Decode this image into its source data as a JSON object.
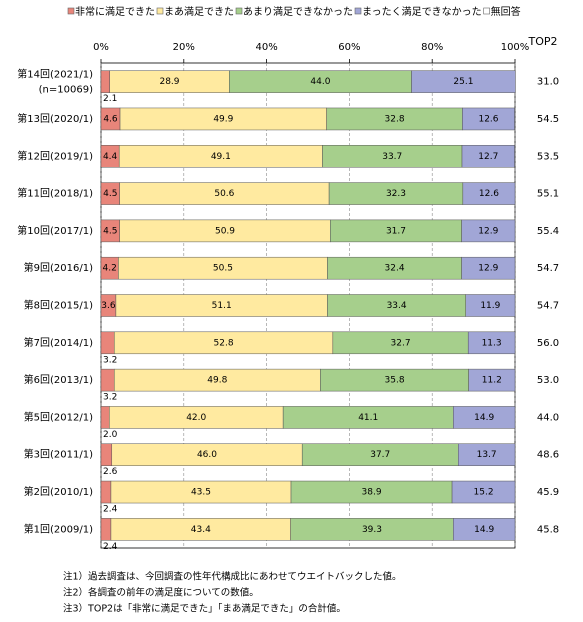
{
  "chart_data": {
    "type": "stacked-bar-horizontal",
    "categories": [
      "第14回(2021/1)",
      "第13回(2020/1)",
      "第12回(2019/1)",
      "第11回(2018/1)",
      "第10回(2017/1)",
      "第9回(2016/1)",
      "第8回(2015/1)",
      "第7回(2014/1)",
      "第6回(2013/1)",
      "第5回(2012/1)",
      "第3回(2011/1)",
      "第2回(2010/1)",
      "第1回(2009/1)"
    ],
    "category_note": "(n=10069)",
    "series": [
      {
        "name": "非常に満足できた",
        "color": "#e8857a",
        "values": [
          2.1,
          4.6,
          4.4,
          4.5,
          4.5,
          4.2,
          3.6,
          3.2,
          3.2,
          2.0,
          2.6,
          2.4,
          2.4
        ],
        "value_labels": [
          "2.1",
          "4.6",
          "4.4",
          "4.5",
          "4.5",
          "4.2",
          "3.6",
          "3.2",
          "3.2",
          "2.0",
          "2.6",
          "2.4",
          "2.4"
        ]
      },
      {
        "name": "まあ満足できた",
        "color": "#ffeaa0",
        "values": [
          28.9,
          49.9,
          49.1,
          50.6,
          50.9,
          50.5,
          51.1,
          52.8,
          49.8,
          42.0,
          46.0,
          43.5,
          43.4
        ],
        "value_labels": [
          "28.9",
          "49.9",
          "49.1",
          "50.6",
          "50.9",
          "50.5",
          "51.1",
          "52.8",
          "49.8",
          "42.0",
          "46.0",
          "43.5",
          "43.4"
        ]
      },
      {
        "name": "あまり満足できなかった",
        "color": "#a6cf8c",
        "values": [
          44.0,
          32.8,
          33.7,
          32.3,
          31.7,
          32.4,
          33.4,
          32.7,
          35.8,
          41.1,
          37.7,
          38.9,
          39.3
        ],
        "value_labels": [
          "44.0",
          "32.8",
          "33.7",
          "32.3",
          "31.7",
          "32.4",
          "33.4",
          "32.7",
          "35.8",
          "41.1",
          "37.7",
          "38.9",
          "39.3"
        ]
      },
      {
        "name": "まったく満足できなかった",
        "color": "#a1a6d6",
        "values": [
          25.1,
          12.6,
          12.7,
          12.6,
          12.9,
          12.9,
          11.9,
          11.3,
          11.2,
          14.9,
          13.7,
          15.2,
          14.9
        ],
        "value_labels": [
          "25.1",
          "12.6",
          "12.7",
          "12.6",
          "12.9",
          "12.9",
          "11.9",
          "11.3",
          "11.2",
          "14.9",
          "13.7",
          "15.2",
          "14.9"
        ]
      },
      {
        "name": "無回答",
        "color": "#ffffff",
        "values": [
          null,
          null,
          null,
          null,
          null,
          null,
          null,
          null,
          null,
          null,
          null,
          null,
          null
        ]
      }
    ],
    "top2": {
      "name": "TOP2",
      "values": [
        31.0,
        54.5,
        53.5,
        55.1,
        55.4,
        54.7,
        54.7,
        56.0,
        53.0,
        44.0,
        48.6,
        45.9,
        45.8
      ],
      "value_labels": [
        "31.0",
        "54.5",
        "53.5",
        "55.1",
        "55.4",
        "54.7",
        "54.7",
        "56.0",
        "53.0",
        "44.0",
        "48.6",
        "45.9",
        "45.8"
      ]
    },
    "xlim": [
      0,
      100
    ],
    "xticks": [
      {
        "value": 0,
        "label": "0%"
      },
      {
        "value": 20,
        "label": "20%"
      },
      {
        "value": 40,
        "label": "40%"
      },
      {
        "value": 60,
        "label": "60%"
      },
      {
        "value": 80,
        "label": "80%"
      },
      {
        "value": 100,
        "label": "100%"
      }
    ],
    "grid": true,
    "notes": [
      "注1）過去調査は、今回調査の性年代構成比にあわせてウエイトバックした値。",
      "注2）各調査の前年の満足度についての数値。",
      "注3）TOP2は「非常に満足できた」「まあ満足できた」の合計値。"
    ]
  }
}
